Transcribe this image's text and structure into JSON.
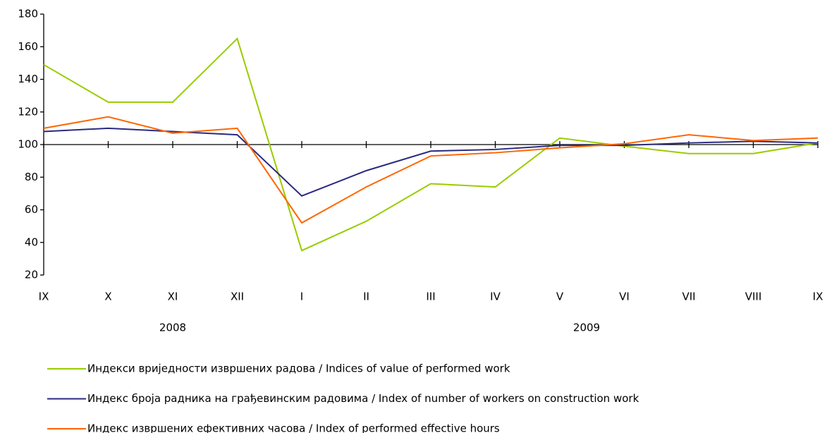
{
  "chart_data": {
    "type": "line",
    "categories": [
      "IX",
      "X",
      "XI",
      "XII",
      "I",
      "II",
      "III",
      "IV",
      "V",
      "VI",
      "VII",
      "VIII",
      "IX"
    ],
    "year_labels": [
      "2008",
      "2009"
    ],
    "series": [
      {
        "name": "Индекси вриједности извршених радова / Indices of value of performed work",
        "color": "#99cc00",
        "values": [
          149,
          126,
          126,
          165,
          35,
          53,
          76,
          74,
          104,
          99,
          94.5,
          94.5,
          101
        ]
      },
      {
        "name": "Индекс броја радника на грађевинским радовима / Index of number of workers on construction work",
        "color": "#2a2a80",
        "values": [
          108,
          110,
          108,
          106,
          68.5,
          84,
          96,
          97,
          99.5,
          99.5,
          101,
          102,
          101
        ]
      },
      {
        "name": "Индекс извршених ефективних часова / Index of performed effective hours",
        "color": "#ff6600",
        "values": [
          110,
          117,
          107,
          110,
          52,
          74,
          93,
          95,
          98,
          100.5,
          106,
          102.5,
          104
        ]
      }
    ],
    "ylim": [
      20,
      180
    ],
    "yticks": [
      20,
      40,
      60,
      80,
      100,
      120,
      140,
      160,
      180
    ],
    "x_axis_at": 100,
    "legend": "bottom"
  }
}
